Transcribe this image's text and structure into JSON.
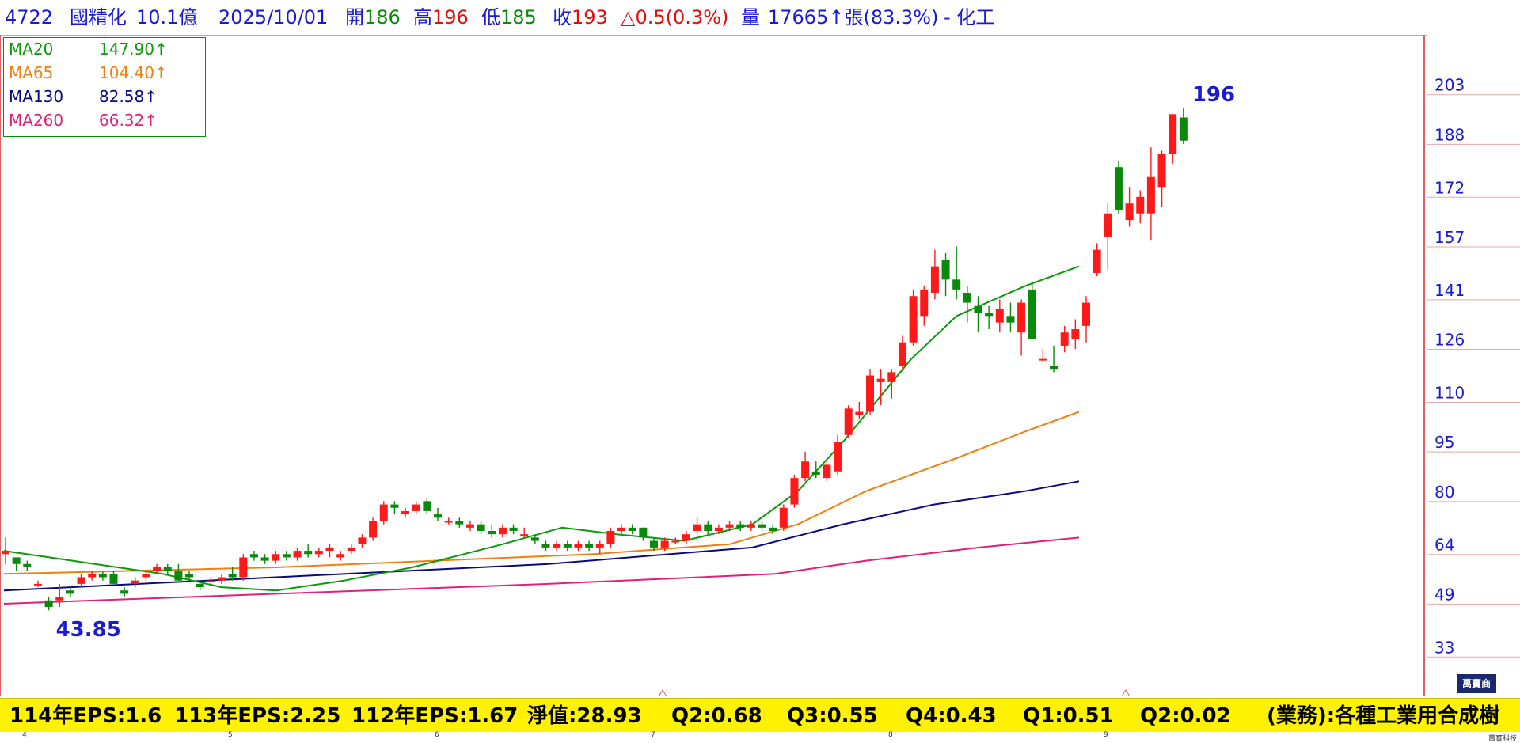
{
  "header": {
    "code": "4722",
    "name": "國精化",
    "cap": "10.1億",
    "date": "2025/10/01",
    "open_label": "開",
    "open": "186",
    "high_label": "高",
    "high": "196",
    "low_label": "低",
    "low": "185",
    "close_label": "收",
    "close": "193",
    "change": "△0.5(0.3%)",
    "volume_label": "量",
    "volume": "17665↑張(83.3%)",
    "sector": "- 化工"
  },
  "legend": [
    {
      "name": "MA20",
      "value": "147.90↑",
      "color": "#0a9a0a"
    },
    {
      "name": "MA65",
      "value": "104.40↑",
      "color": "#f08010"
    },
    {
      "name": "MA130",
      "value": "82.58↑",
      "color": "#0a0a80"
    },
    {
      "name": "MA260",
      "value": "66.32↑",
      "color": "#e0207a"
    }
  ],
  "footer": [
    "114年EPS:1.6",
    "113年EPS:2.25",
    "112年EPS:1.67",
    "淨值:28.93",
    "Q2:0.68",
    "Q3:0.55",
    "Q4:0.43",
    "Q1:0.51",
    "Q2:0.02",
    "(業務):各種工業用合成樹"
  ],
  "brand": {
    "badge": "萬寶商",
    "small": "萬寶科技"
  },
  "colors": {
    "up": "#ff1a1a",
    "down": "#0a8a0a",
    "axis_text": "#1a1ad0"
  },
  "chart_data": {
    "type": "candlestick",
    "yticks": [
      203,
      188,
      172,
      157,
      141,
      126,
      110,
      95,
      80,
      64,
      49,
      33
    ],
    "ylim": [
      18,
      218
    ],
    "x_month_labels": [
      "4",
      "5",
      "6",
      "7",
      "8",
      "9"
    ],
    "annotations": [
      {
        "text": "196"
      },
      {
        "text": "43.85"
      }
    ],
    "candles": [
      [
        61,
        66,
        58,
        62
      ],
      [
        60,
        60,
        56,
        58
      ],
      [
        58,
        59,
        56,
        57
      ],
      [
        52,
        53,
        51,
        52
      ],
      [
        47,
        48,
        44,
        45
      ],
      [
        47,
        52,
        45,
        48
      ],
      [
        50,
        51,
        48,
        49
      ],
      [
        52,
        55,
        51,
        54
      ],
      [
        54,
        56,
        53,
        55
      ],
      [
        55,
        56,
        53,
        54
      ],
      [
        55,
        56,
        52,
        52
      ],
      [
        50,
        51,
        48,
        49
      ],
      [
        52,
        54,
        51,
        53
      ],
      [
        54,
        56,
        53,
        55
      ],
      [
        56,
        58,
        55,
        57
      ],
      [
        57,
        58,
        55,
        56
      ],
      [
        56,
        58,
        53,
        53
      ],
      [
        55,
        56,
        53,
        54
      ],
      [
        52,
        53,
        50,
        51
      ],
      [
        53,
        54,
        52,
        53
      ],
      [
        53,
        55,
        52,
        54
      ],
      [
        55,
        57,
        53,
        54
      ],
      [
        54,
        61,
        53,
        60
      ],
      [
        61,
        62,
        59,
        60
      ],
      [
        60,
        61,
        58,
        59
      ],
      [
        59,
        62,
        58,
        61
      ],
      [
        61,
        62,
        59,
        60
      ],
      [
        60,
        63,
        59,
        62
      ],
      [
        62,
        64,
        60,
        61
      ],
      [
        61,
        63,
        60,
        62
      ],
      [
        62,
        64,
        60,
        63
      ],
      [
        60,
        62,
        59,
        61
      ],
      [
        62,
        64,
        61,
        63
      ],
      [
        64,
        67,
        63,
        66
      ],
      [
        66,
        72,
        65,
        71
      ],
      [
        71,
        77,
        70,
        76
      ],
      [
        76,
        77,
        73,
        75
      ],
      [
        73,
        75,
        72,
        74
      ],
      [
        74,
        77,
        73,
        76
      ],
      [
        77,
        78,
        73,
        74
      ],
      [
        73,
        75,
        71,
        72
      ],
      [
        71,
        72,
        70,
        71
      ],
      [
        71,
        72,
        69,
        70
      ],
      [
        69,
        71,
        68,
        70
      ],
      [
        70,
        71,
        67,
        68
      ],
      [
        68,
        70,
        66,
        67
      ],
      [
        67,
        70,
        66,
        69
      ],
      [
        69,
        70,
        67,
        68
      ],
      [
        67,
        69,
        66,
        67
      ],
      [
        66,
        67,
        64,
        65
      ],
      [
        64,
        65,
        62,
        63
      ],
      [
        63,
        65,
        62,
        64
      ],
      [
        64,
        65,
        62,
        63
      ],
      [
        63,
        65,
        62,
        64
      ],
      [
        64,
        65,
        62,
        63
      ],
      [
        63,
        65,
        61,
        64
      ],
      [
        64,
        69,
        63,
        68
      ],
      [
        68,
        70,
        67,
        69
      ],
      [
        69,
        70,
        67,
        68
      ],
      [
        69,
        69,
        65,
        66
      ],
      [
        65,
        66,
        62,
        63
      ],
      [
        63,
        66,
        62,
        65
      ],
      [
        65,
        66,
        64,
        65
      ],
      [
        65,
        68,
        64,
        67
      ],
      [
        68,
        72,
        67,
        70
      ],
      [
        70,
        71,
        67,
        68
      ],
      [
        68,
        70,
        67,
        69
      ],
      [
        69,
        71,
        68,
        70
      ],
      [
        70,
        71,
        68,
        69
      ],
      [
        69,
        71,
        68,
        70
      ],
      [
        70,
        71,
        68,
        69
      ],
      [
        69,
        70,
        67,
        68
      ],
      [
        69,
        76,
        68,
        75
      ],
      [
        76,
        85,
        75,
        84
      ],
      [
        84,
        92,
        83,
        89
      ],
      [
        86,
        89,
        84,
        85
      ],
      [
        84,
        89,
        83,
        88
      ],
      [
        86,
        97,
        85,
        95
      ],
      [
        97,
        106,
        96,
        105
      ],
      [
        103,
        107,
        102,
        104
      ],
      [
        104,
        117,
        103,
        115
      ],
      [
        113,
        117,
        106,
        114
      ],
      [
        113,
        117,
        108,
        116
      ],
      [
        118,
        127,
        117,
        125
      ],
      [
        125,
        141,
        124,
        139
      ],
      [
        133,
        142,
        130,
        141
      ],
      [
        140,
        153,
        138,
        148
      ],
      [
        150,
        152,
        139,
        144
      ],
      [
        144,
        154,
        138,
        141
      ],
      [
        140,
        142,
        131,
        137
      ],
      [
        136,
        139,
        128,
        134
      ],
      [
        134,
        136,
        129,
        133
      ],
      [
        131,
        138,
        128,
        135
      ],
      [
        133,
        137,
        128,
        131
      ],
      [
        128,
        138,
        121,
        137
      ],
      [
        141,
        143,
        126,
        126
      ],
      [
        120,
        123,
        119,
        120
      ],
      [
        118,
        124,
        116,
        117
      ],
      [
        124,
        130,
        122,
        128
      ],
      [
        126,
        132,
        123,
        129
      ],
      [
        130,
        139,
        125,
        137
      ],
      [
        146,
        155,
        145,
        153
      ],
      [
        157,
        167,
        147,
        164
      ],
      [
        178,
        180,
        164,
        165
      ],
      [
        162,
        172,
        160,
        167
      ],
      [
        164,
        171,
        161,
        169
      ],
      [
        164,
        184,
        156,
        175
      ],
      [
        172,
        183,
        166,
        182
      ],
      [
        182,
        193,
        179,
        194
      ],
      [
        193,
        196,
        185,
        186
      ]
    ],
    "ma20": [
      [
        0,
        62
      ],
      [
        10,
        60
      ],
      [
        20,
        58
      ],
      [
        35,
        55
      ],
      [
        48,
        51
      ],
      [
        60,
        50
      ],
      [
        75,
        53
      ],
      [
        90,
        57
      ],
      [
        110,
        64
      ],
      [
        123,
        69
      ],
      [
        135,
        67
      ],
      [
        150,
        65
      ],
      [
        165,
        70
      ],
      [
        175,
        80
      ],
      [
        185,
        95
      ],
      [
        200,
        120
      ],
      [
        210,
        133
      ],
      [
        225,
        142
      ],
      [
        237,
        148
      ]
    ],
    "ma65": [
      [
        0,
        55
      ],
      [
        60,
        57
      ],
      [
        130,
        61
      ],
      [
        160,
        64
      ],
      [
        175,
        70
      ],
      [
        190,
        80
      ],
      [
        210,
        90
      ],
      [
        225,
        98
      ],
      [
        237,
        104
      ]
    ],
    "ma130": [
      [
        0,
        50
      ],
      [
        60,
        54
      ],
      [
        120,
        58
      ],
      [
        165,
        63
      ],
      [
        185,
        70
      ],
      [
        205,
        76
      ],
      [
        225,
        80
      ],
      [
        237,
        83
      ]
    ],
    "ma260": [
      [
        0,
        46
      ],
      [
        60,
        49
      ],
      [
        120,
        52
      ],
      [
        170,
        55
      ],
      [
        190,
        59
      ],
      [
        215,
        63
      ],
      [
        237,
        66
      ]
    ]
  }
}
